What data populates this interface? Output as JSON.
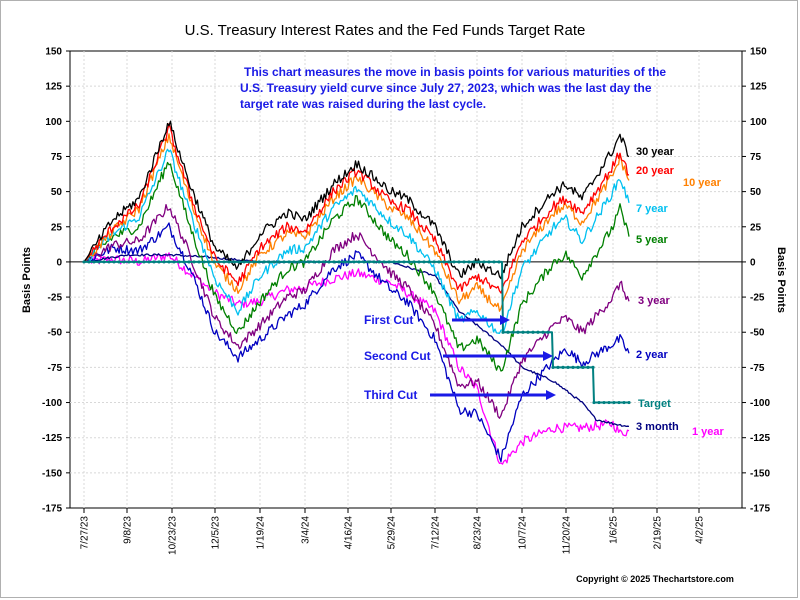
{
  "chart_data": {
    "type": "line",
    "title": "U.S. Treasury Interest Rates and the Fed Funds Target Rate",
    "ylabel_left": "Basis Points",
    "ylabel_right": "Basis Points",
    "ylim": [
      -175,
      150
    ],
    "yticks": [
      "150",
      "125",
      "100",
      "75",
      "50",
      "25",
      "0",
      "-25",
      "-50",
      "-75",
      "-100",
      "-125",
      "-150",
      "-175"
    ],
    "x_ticks": [
      "7/27/23",
      "9/8/23",
      "10/23/23",
      "12/5/23",
      "1/19/24",
      "3/4/24",
      "4/16/24",
      "5/29/24",
      "7/12/24",
      "8/23/24",
      "10/7/24",
      "11/20/24",
      "1/6/25",
      "2/19/25",
      "4/2/25"
    ],
    "xlim": [
      "2023-07-13",
      "2025-05-15"
    ],
    "grid": true,
    "annotation": [
      "This chart measures the move in basis points for various maturities of the",
      "U.S. Treasury yield curve since July 27, 2023, which was the last day the",
      "target rate was raised during the last cycle."
    ],
    "cuts": [
      {
        "label": "First Cut",
        "date": "2024-09-18"
      },
      {
        "label": "Second Cut",
        "date": "2024-11-07"
      },
      {
        "label": "Third Cut",
        "date": "2024-12-18"
      }
    ],
    "series": [
      {
        "name": "30 year",
        "color": "#000000",
        "x": [
          "2023-07-27",
          "2023-08-25",
          "2023-09-20",
          "2023-10-20",
          "2023-11-10",
          "2023-12-05",
          "2023-12-28",
          "2024-01-19",
          "2024-02-15",
          "2024-03-04",
          "2024-04-01",
          "2024-04-25",
          "2024-05-29",
          "2024-06-14",
          "2024-07-12",
          "2024-08-05",
          "2024-08-23",
          "2024-09-16",
          "2024-10-07",
          "2024-11-08",
          "2024-11-20",
          "2024-12-06",
          "2025-01-06",
          "2025-01-13",
          "2025-01-22"
        ],
        "y": [
          0,
          30,
          45,
          100,
          55,
          10,
          -5,
          20,
          35,
          30,
          55,
          70,
          50,
          45,
          25,
          -10,
          0,
          -10,
          25,
          50,
          55,
          45,
          80,
          90,
          75
        ]
      },
      {
        "name": "20 year",
        "color": "#ff0000",
        "x": [
          "2023-07-27",
          "2023-08-25",
          "2023-09-20",
          "2023-10-20",
          "2023-11-10",
          "2023-12-05",
          "2023-12-28",
          "2024-01-19",
          "2024-02-15",
          "2024-03-04",
          "2024-04-01",
          "2024-04-25",
          "2024-05-29",
          "2024-06-14",
          "2024-07-12",
          "2024-08-05",
          "2024-08-23",
          "2024-09-16",
          "2024-10-07",
          "2024-11-08",
          "2024-11-20",
          "2024-12-06",
          "2025-01-06",
          "2025-01-13",
          "2025-01-22"
        ],
        "y": [
          0,
          25,
          40,
          95,
          48,
          2,
          -15,
          10,
          25,
          22,
          50,
          65,
          42,
          38,
          15,
          -20,
          -10,
          -22,
          15,
          40,
          45,
          35,
          68,
          78,
          62
        ]
      },
      {
        "name": "10 year",
        "color": "#ff8000",
        "x": [
          "2023-07-27",
          "2023-08-25",
          "2023-09-20",
          "2023-10-20",
          "2023-11-10",
          "2023-12-05",
          "2023-12-28",
          "2024-01-19",
          "2024-02-15",
          "2024-03-04",
          "2024-04-01",
          "2024-04-25",
          "2024-05-29",
          "2024-06-14",
          "2024-07-12",
          "2024-08-05",
          "2024-08-23",
          "2024-09-16",
          "2024-10-07",
          "2024-11-08",
          "2024-11-20",
          "2024-12-06",
          "2025-01-06",
          "2025-01-13",
          "2025-01-22"
        ],
        "y": [
          0,
          22,
          38,
          90,
          44,
          -2,
          -20,
          5,
          20,
          18,
          45,
          60,
          38,
          32,
          8,
          -28,
          -18,
          -35,
          8,
          35,
          40,
          28,
          62,
          74,
          58
        ]
      },
      {
        "name": "7 year",
        "color": "#00c0f0",
        "x": [
          "2023-07-27",
          "2023-08-25",
          "2023-09-20",
          "2023-10-20",
          "2023-11-10",
          "2023-12-05",
          "2023-12-28",
          "2024-01-19",
          "2024-02-15",
          "2024-03-04",
          "2024-04-01",
          "2024-04-25",
          "2024-05-29",
          "2024-06-14",
          "2024-07-12",
          "2024-08-05",
          "2024-08-23",
          "2024-09-16",
          "2024-10-07",
          "2024-11-08",
          "2024-11-20",
          "2024-12-06",
          "2025-01-06",
          "2025-01-13",
          "2025-01-22"
        ],
        "y": [
          0,
          20,
          32,
          80,
          35,
          -12,
          -35,
          -10,
          8,
          10,
          38,
          52,
          28,
          20,
          -5,
          -42,
          -35,
          -52,
          -5,
          25,
          30,
          15,
          50,
          60,
          42
        ]
      },
      {
        "name": "5 year",
        "color": "#008000",
        "x": [
          "2023-07-27",
          "2023-08-25",
          "2023-09-20",
          "2023-10-20",
          "2023-11-10",
          "2023-12-05",
          "2023-12-28",
          "2024-01-19",
          "2024-02-15",
          "2024-03-04",
          "2024-04-01",
          "2024-04-25",
          "2024-05-29",
          "2024-06-14",
          "2024-07-12",
          "2024-08-05",
          "2024-08-23",
          "2024-09-16",
          "2024-10-07",
          "2024-11-08",
          "2024-11-20",
          "2024-12-06",
          "2025-01-06",
          "2025-01-13",
          "2025-01-22"
        ],
        "y": [
          0,
          18,
          25,
          72,
          25,
          -25,
          -50,
          -28,
          -5,
          0,
          30,
          45,
          15,
          5,
          -22,
          -62,
          -55,
          -78,
          -30,
          0,
          5,
          -10,
          25,
          38,
          18
        ]
      },
      {
        "name": "3 year",
        "color": "#800080",
        "x": [
          "2023-07-27",
          "2023-08-25",
          "2023-09-20",
          "2023-10-20",
          "2023-11-10",
          "2023-12-05",
          "2023-12-28",
          "2024-01-19",
          "2024-02-15",
          "2024-03-04",
          "2024-04-01",
          "2024-04-25",
          "2024-05-29",
          "2024-06-14",
          "2024-07-12",
          "2024-08-05",
          "2024-08-23",
          "2024-09-16",
          "2024-10-07",
          "2024-11-08",
          "2024-11-20",
          "2024-12-06",
          "2025-01-06",
          "2025-01-13",
          "2025-01-22"
        ],
        "y": [
          0,
          12,
          15,
          40,
          5,
          -40,
          -60,
          -45,
          -25,
          -20,
          8,
          20,
          -8,
          -18,
          -45,
          -88,
          -85,
          -110,
          -70,
          -45,
          -40,
          -50,
          -25,
          -15,
          -28
        ]
      },
      {
        "name": "2 year",
        "color": "#0000c0",
        "x": [
          "2023-07-27",
          "2023-08-25",
          "2023-09-20",
          "2023-10-20",
          "2023-11-10",
          "2023-12-05",
          "2023-12-28",
          "2024-01-19",
          "2024-02-15",
          "2024-03-04",
          "2024-04-01",
          "2024-04-25",
          "2024-05-29",
          "2024-06-14",
          "2024-07-12",
          "2024-08-05",
          "2024-08-23",
          "2024-09-16",
          "2024-10-07",
          "2024-11-08",
          "2024-11-20",
          "2024-12-06",
          "2025-01-06",
          "2025-01-13",
          "2025-01-22"
        ],
        "y": [
          0,
          10,
          8,
          25,
          -5,
          -50,
          -68,
          -55,
          -38,
          -30,
          -5,
          5,
          -20,
          -28,
          -55,
          -105,
          -108,
          -140,
          -95,
          -70,
          -62,
          -72,
          -58,
          -55,
          -65
        ]
      },
      {
        "name": "1 year",
        "color": "#ff00ff",
        "x": [
          "2023-07-27",
          "2023-08-25",
          "2023-09-20",
          "2023-10-20",
          "2023-11-10",
          "2023-12-05",
          "2023-12-28",
          "2024-01-19",
          "2024-02-15",
          "2024-03-04",
          "2024-04-01",
          "2024-04-25",
          "2024-05-29",
          "2024-06-14",
          "2024-07-12",
          "2024-08-05",
          "2024-08-23",
          "2024-09-16",
          "2024-10-07",
          "2024-11-08",
          "2024-11-20",
          "2024-12-06",
          "2025-01-06",
          "2025-01-13",
          "2025-01-22"
        ],
        "y": [
          0,
          2,
          0,
          5,
          -8,
          -22,
          -30,
          -28,
          -20,
          -18,
          -12,
          -8,
          -15,
          -22,
          -35,
          -75,
          -90,
          -145,
          -128,
          -118,
          -118,
          -118,
          -115,
          -122,
          -120
        ]
      },
      {
        "name": "3 month",
        "color": "#000080",
        "x": [
          "2023-07-27",
          "2023-09-08",
          "2023-10-23",
          "2023-12-05",
          "2024-01-19",
          "2024-03-04",
          "2024-04-16",
          "2024-05-29",
          "2024-07-12",
          "2024-08-05",
          "2024-08-23",
          "2024-09-18",
          "2024-10-07",
          "2024-11-08",
          "2024-12-06",
          "2024-12-20",
          "2025-01-06",
          "2025-01-22"
        ],
        "y": [
          0,
          5,
          5,
          3,
          0,
          0,
          0,
          0,
          -10,
          -35,
          -45,
          -60,
          -75,
          -85,
          -100,
          -112,
          -115,
          -117
        ]
      },
      {
        "name": "Target",
        "color": "#008080",
        "marker": true,
        "x": [
          "2023-07-27",
          "2024-09-17",
          "2024-09-18",
          "2024-11-06",
          "2024-11-07",
          "2024-12-17",
          "2024-12-18",
          "2025-01-22"
        ],
        "y": [
          0,
          0,
          -50,
          -50,
          -75,
          -75,
          -100,
          -100
        ]
      }
    ]
  },
  "copyright": "Copyright © 2025 Thechartstore.com"
}
